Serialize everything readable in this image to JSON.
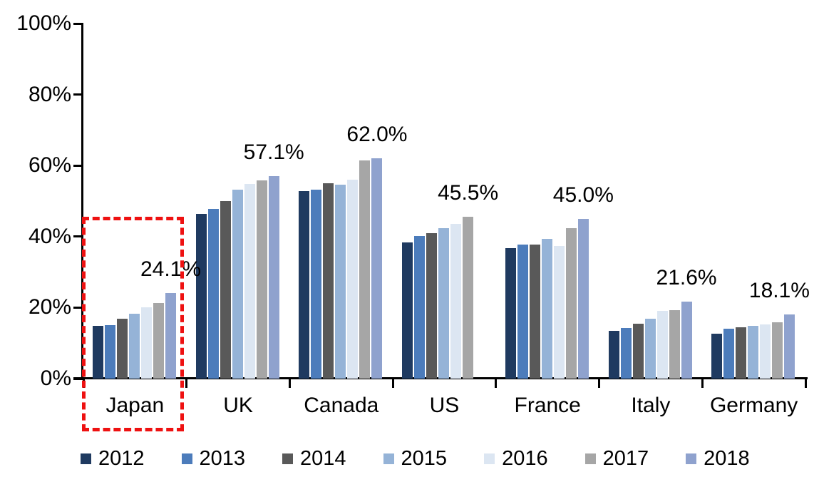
{
  "chart_data": {
    "type": "bar",
    "title": "",
    "xlabel": "",
    "ylabel": "",
    "categories": [
      "Japan",
      "UK",
      "Canada",
      "US",
      "France",
      "Italy",
      "Germany"
    ],
    "series": [
      {
        "name": "2012",
        "color": "#1F3A60",
        "values": [
          14.8,
          46.4,
          52.9,
          38.3,
          36.7,
          13.4,
          12.6
        ]
      },
      {
        "name": "2013",
        "color": "#4C7CBB",
        "values": [
          15.0,
          47.7,
          53.3,
          40.2,
          37.8,
          14.2,
          14.0
        ]
      },
      {
        "name": "2014",
        "color": "#595959",
        "values": [
          16.8,
          50.0,
          55.0,
          41.0,
          37.7,
          15.4,
          14.4
        ]
      },
      {
        "name": "2015",
        "color": "#95B3D7",
        "values": [
          18.2,
          53.2,
          54.7,
          42.3,
          39.4,
          16.9,
          14.8
        ]
      },
      {
        "name": "2016",
        "color": "#DCE6F2",
        "values": [
          20.0,
          54.8,
          56.0,
          43.6,
          37.4,
          19.0,
          15.3
        ]
      },
      {
        "name": "2017",
        "color": "#A6A6A6",
        "values": [
          21.2,
          55.9,
          61.5,
          45.5,
          42.4,
          19.2,
          15.9
        ]
      },
      {
        "name": "2018",
        "color": "#8FA2CE",
        "values": [
          24.1,
          57.1,
          62.0,
          null,
          45.0,
          21.6,
          18.1
        ]
      }
    ],
    "data_labels": [
      "24.1%",
      "57.1%",
      "62.0%",
      "45.5%",
      "45.0%",
      "21.6%",
      "18.1%"
    ],
    "y_ticks": [
      "0%",
      "20%",
      "40%",
      "60%",
      "80%",
      "100%"
    ],
    "ylim": [
      0,
      100
    ],
    "grid": false,
    "legend_position": "bottom",
    "axis_color": "#000000",
    "highlight": {
      "category": "Japan",
      "style": "dashed-box",
      "color": "#EE1111"
    }
  }
}
